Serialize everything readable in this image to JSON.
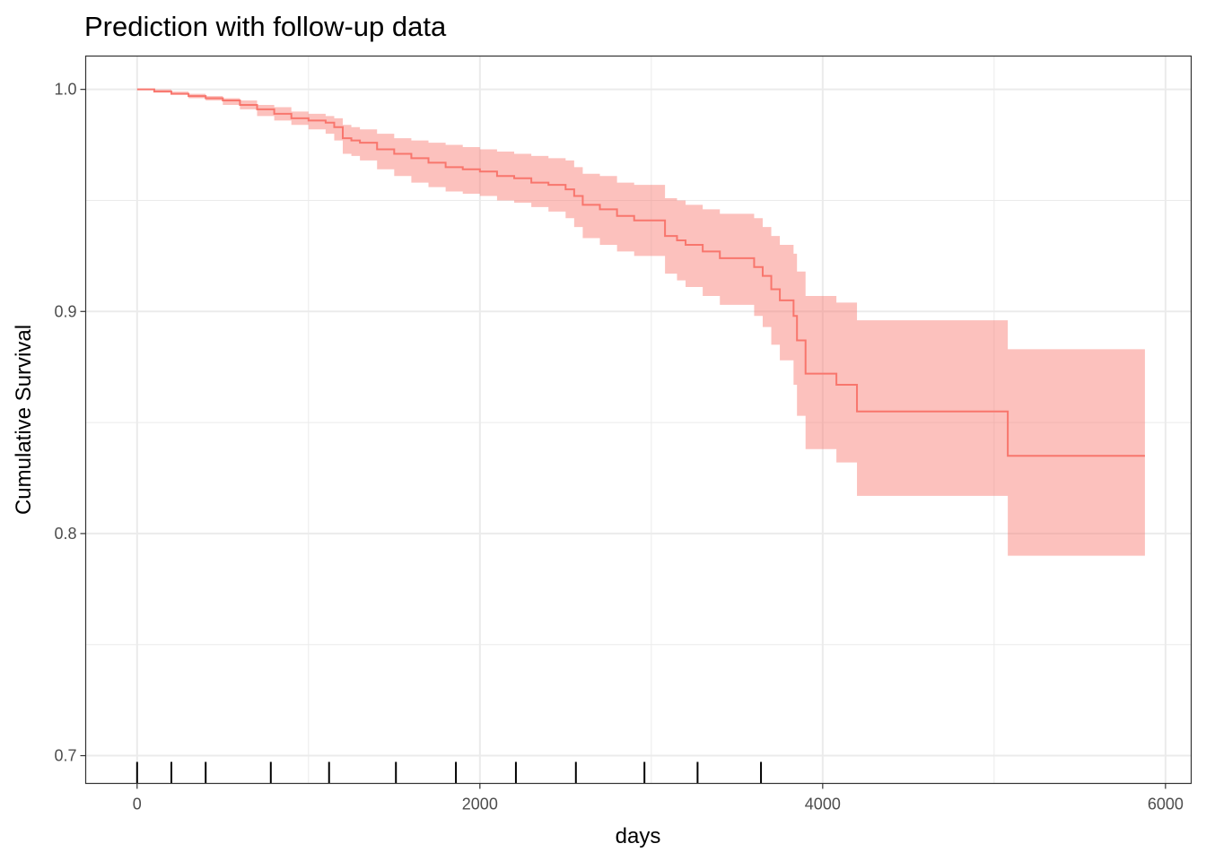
{
  "chart_data": {
    "type": "line",
    "title": "Prediction with follow-up data",
    "xlabel": "days",
    "ylabel": "Cumulative Survival",
    "xlim": [
      -300,
      6150
    ],
    "ylim": [
      0.6875,
      1.015
    ],
    "x_ticks": [
      0,
      2000,
      4000,
      6000
    ],
    "x_tick_labels": [
      "0",
      "2000",
      "4000",
      "6000"
    ],
    "y_ticks": [
      0.7,
      0.8,
      0.9,
      1.0
    ],
    "y_tick_labels": [
      "0.7",
      "0.8",
      "0.9",
      "1.0"
    ],
    "grid": true,
    "colors": {
      "line": "#f8766d",
      "ribbon": "#f8766d"
    },
    "series": [
      {
        "step": true,
        "x": [
          0,
          100,
          200,
          300,
          400,
          500,
          600,
          700,
          800,
          900,
          1000,
          1100,
          1150,
          1200,
          1250,
          1300,
          1400,
          1500,
          1600,
          1700,
          1800,
          1900,
          2000,
          2100,
          2200,
          2300,
          2400,
          2500,
          2550,
          2600,
          2700,
          2800,
          2900,
          3000,
          3050,
          3080,
          3150,
          3200,
          3300,
          3400,
          3500,
          3600,
          3650,
          3700,
          3750,
          3790,
          3830,
          3850,
          3900,
          4080,
          4200,
          5080,
          5880
        ],
        "y": [
          1.0,
          0.999,
          0.998,
          0.997,
          0.996,
          0.995,
          0.993,
          0.991,
          0.989,
          0.987,
          0.986,
          0.985,
          0.983,
          0.978,
          0.977,
          0.976,
          0.973,
          0.971,
          0.969,
          0.967,
          0.965,
          0.964,
          0.963,
          0.961,
          0.96,
          0.958,
          0.957,
          0.955,
          0.952,
          0.948,
          0.946,
          0.943,
          0.941,
          0.941,
          0.941,
          0.934,
          0.932,
          0.93,
          0.927,
          0.924,
          0.924,
          0.92,
          0.916,
          0.91,
          0.905,
          0.905,
          0.898,
          0.887,
          0.872,
          0.867,
          0.855,
          0.835,
          0.835
        ],
        "lower": [
          1.0,
          0.999,
          0.998,
          0.996,
          0.995,
          0.993,
          0.991,
          0.988,
          0.986,
          0.984,
          0.982,
          0.98,
          0.977,
          0.971,
          0.97,
          0.968,
          0.964,
          0.961,
          0.958,
          0.956,
          0.954,
          0.953,
          0.952,
          0.95,
          0.949,
          0.947,
          0.945,
          0.942,
          0.938,
          0.933,
          0.93,
          0.927,
          0.925,
          0.925,
          0.925,
          0.917,
          0.914,
          0.911,
          0.907,
          0.903,
          0.903,
          0.898,
          0.893,
          0.885,
          0.878,
          0.878,
          0.867,
          0.853,
          0.838,
          0.832,
          0.817,
          0.79,
          0.79
        ],
        "upper": [
          1.0,
          1.0,
          0.999,
          0.998,
          0.997,
          0.996,
          0.995,
          0.993,
          0.992,
          0.99,
          0.989,
          0.988,
          0.987,
          0.984,
          0.983,
          0.982,
          0.98,
          0.978,
          0.977,
          0.976,
          0.975,
          0.974,
          0.973,
          0.972,
          0.971,
          0.97,
          0.969,
          0.968,
          0.965,
          0.962,
          0.961,
          0.958,
          0.957,
          0.957,
          0.957,
          0.951,
          0.95,
          0.948,
          0.946,
          0.944,
          0.944,
          0.942,
          0.938,
          0.934,
          0.93,
          0.93,
          0.926,
          0.918,
          0.907,
          0.904,
          0.896,
          0.883,
          0.883
        ]
      }
    ],
    "rug_x": [
      0,
      200,
      400,
      780,
      1120,
      1510,
      1860,
      2210,
      2560,
      2960,
      3270,
      3640
    ]
  }
}
